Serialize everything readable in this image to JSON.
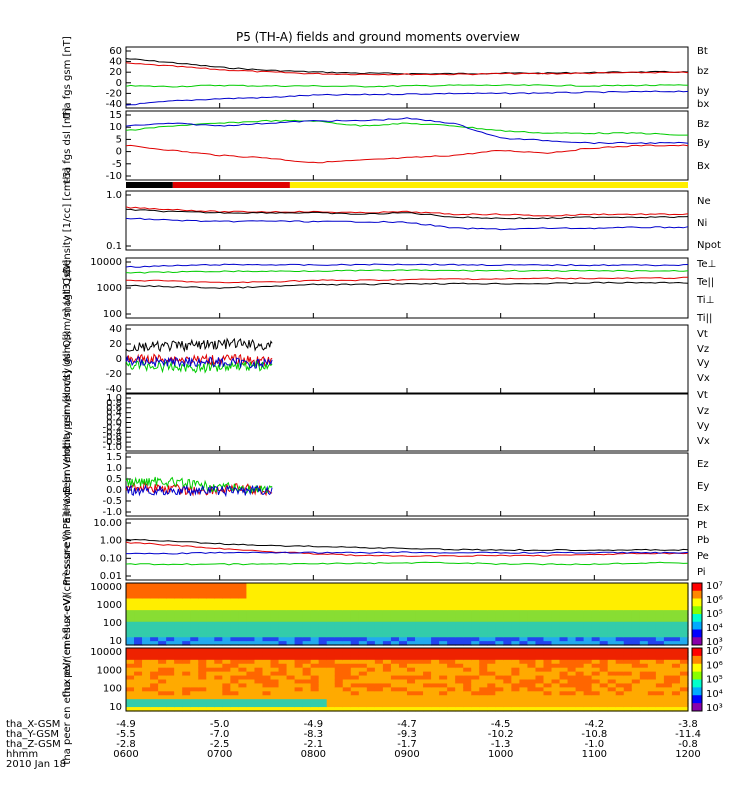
{
  "title": "P5 (TH-A) fields and ground moments overview",
  "colors": {
    "black": "#000000",
    "red": "#e00000",
    "green": "#00cc00",
    "blue": "#0000cc",
    "yellow": "#ffee00"
  },
  "time_axis": {
    "ticks": [
      "0600",
      "0700",
      "0800",
      "0900",
      "1000",
      "1100",
      "1200"
    ],
    "rows": [
      {
        "label": "tha_X-GSM",
        "values": [
          "-4.9",
          "-5.0",
          "-4.9",
          "-4.7",
          "-4.5",
          "-4.2",
          "-3.8"
        ]
      },
      {
        "label": "tha_Y-GSM",
        "values": [
          "-5.5",
          "-7.0",
          "-8.3",
          "-9.3",
          "-10.2",
          "-10.8",
          "-11.4"
        ]
      },
      {
        "label": "tha_Z-GSM",
        "values": [
          "-2.8",
          "-2.5",
          "-2.1",
          "-1.7",
          "-1.3",
          "-1.0",
          "-0.8"
        ]
      },
      {
        "label": "hhmm",
        "values": []
      },
      {
        "label": "2010 Jan 18",
        "values": []
      }
    ]
  },
  "mode_bar": {
    "segments": [
      {
        "from": "0600",
        "to": "0630",
        "color": "#000000"
      },
      {
        "from": "0630",
        "to": "0745",
        "color": "#e00000"
      },
      {
        "from": "0745",
        "to": "1200",
        "color": "#ffee00"
      }
    ]
  },
  "colorbar": {
    "labels": [
      "10⁷",
      "10⁶",
      "10⁵",
      "10⁴",
      "10³"
    ]
  },
  "chart_data": [
    {
      "type": "line",
      "ylabel": "tha fgs gsm [nT]",
      "yticks": [
        "60",
        "40",
        "20",
        "0",
        "-20",
        "-40"
      ],
      "ylim": [
        -40,
        65
      ],
      "series": [
        {
          "name": "Bt",
          "color": "black",
          "values": [
            45,
            38,
            30,
            25,
            22,
            20,
            19,
            19,
            20,
            20,
            21,
            22,
            22
          ]
        },
        {
          "name": "bz",
          "color": "red",
          "values": [
            37,
            32,
            26,
            22,
            19,
            18,
            18,
            18,
            19,
            19,
            20,
            21,
            21
          ]
        },
        {
          "name": "by",
          "color": "green",
          "values": [
            -2,
            -3,
            -1,
            -2,
            -2,
            -3,
            -2,
            -1,
            -1,
            -1,
            -2,
            -1,
            -1
          ]
        },
        {
          "name": "bx",
          "color": "blue",
          "values": [
            -35,
            -28,
            -24,
            -22,
            -18,
            -17,
            -16,
            -15,
            -15,
            -14,
            -13,
            -12,
            -11
          ]
        }
      ]
    },
    {
      "type": "line",
      "ylabel": "tha fgs dsl [nT]",
      "yticks": [
        "15",
        "10",
        "5",
        "0",
        "-5",
        "-10"
      ],
      "ylim": [
        -12,
        16
      ],
      "series": [
        {
          "name": "Bz",
          "color": "red",
          "values": [
            2,
            0,
            -2,
            -3,
            -5,
            -4,
            -3,
            -2,
            0,
            -1,
            1,
            2,
            2
          ]
        },
        {
          "name": "By",
          "color": "green",
          "values": [
            8,
            10,
            11,
            12,
            12,
            10,
            11,
            10,
            8,
            7,
            7,
            7,
            6
          ]
        },
        {
          "name": "Bx",
          "color": "blue",
          "values": [
            10,
            11,
            10,
            11,
            12,
            12,
            13,
            11,
            5,
            4,
            3,
            3,
            3
          ]
        }
      ]
    },
    {
      "type": "line",
      "ylabel": "Density [1/cc] [cm-3]",
      "yticks": [
        "1.0",
        "0.1"
      ],
      "ylim": [
        0.1,
        1.2
      ],
      "log": true,
      "series": [
        {
          "name": "Ne",
          "color": "red",
          "values": [
            0.6,
            0.55,
            0.5,
            0.5,
            0.5,
            0.48,
            0.5,
            0.45,
            0.45,
            0.42,
            0.45,
            0.45,
            0.45
          ]
        },
        {
          "name": "Ni",
          "color": "black",
          "values": [
            0.55,
            0.5,
            0.48,
            0.48,
            0.48,
            0.45,
            0.48,
            0.4,
            0.38,
            0.38,
            0.4,
            0.4,
            0.4
          ]
        },
        {
          "name": "Npot",
          "color": "blue",
          "values": [
            0.38,
            0.35,
            0.33,
            0.34,
            0.33,
            0.33,
            0.32,
            0.25,
            0.24,
            0.25,
            0.25,
            0.26,
            0.26
          ]
        }
      ]
    },
    {
      "type": "line",
      "ylabel": "magt3 [eV]",
      "yticks": [
        "10000",
        "1000",
        "100"
      ],
      "ylim": [
        100,
        10000
      ],
      "log": true,
      "series": [
        {
          "name": "Te⊥",
          "color": "red",
          "values": [
            1800,
            1700,
            1500,
            1600,
            1800,
            1800,
            1900,
            2000,
            2000,
            2100,
            2100,
            2100,
            2200
          ]
        },
        {
          "name": "Te||",
          "color": "black",
          "values": [
            1200,
            1100,
            1000,
            1100,
            1300,
            1300,
            1400,
            1400,
            1400,
            1400,
            1500,
            1500,
            1500
          ]
        },
        {
          "name": "Ti⊥",
          "color": "blue",
          "values": [
            5000,
            5500,
            6000,
            6000,
            5800,
            6000,
            6200,
            6000,
            5800,
            5800,
            5800,
            5800,
            5800
          ]
        },
        {
          "name": "Ti||",
          "color": "green",
          "values": [
            3200,
            3400,
            3600,
            3600,
            3700,
            3800,
            3900,
            3800,
            3800,
            3700,
            3700,
            3700,
            3700
          ]
        }
      ]
    },
    {
      "type": "line",
      "ylabel": "tha peir velocity gsm [km/s] (All Qs)",
      "yticks": [
        "40",
        "20",
        "0",
        "-20",
        "-40"
      ],
      "ylim": [
        -45,
        50
      ],
      "series": [
        {
          "name": "Vt",
          "color": "black",
          "values": [
            18,
            20,
            22,
            24,
            20
          ]
        },
        {
          "name": "Vz",
          "color": "red",
          "values": [
            2,
            3,
            1,
            2,
            -2
          ]
        },
        {
          "name": "Vy",
          "color": "green",
          "values": [
            -5,
            -8,
            -10,
            -6,
            -8
          ]
        },
        {
          "name": "Vx",
          "color": "blue",
          "values": [
            0,
            -2,
            -1,
            -3,
            -4
          ]
        }
      ]
    },
    {
      "type": "line",
      "ylabel": "tha peer velocity gsm [km/s] (All Qs)",
      "yticks": [
        "1.0",
        "0.8",
        "0.6",
        "0.4",
        "0.2",
        "0.0",
        "-0.2",
        "-0.4",
        "-0.6",
        "-0.8",
        "-1.0"
      ],
      "ylim": [
        -1,
        1
      ],
      "series": [
        {
          "name": "Vt",
          "color": "black",
          "values": []
        },
        {
          "name": "Vz",
          "color": "red",
          "values": []
        },
        {
          "name": "Vy",
          "color": "green",
          "values": []
        },
        {
          "name": "Vx",
          "color": "blue",
          "values": []
        }
      ]
    },
    {
      "type": "line",
      "ylabel": "E=-VxB [mV/m]",
      "yticks": [
        "1.5",
        "1.0",
        "0.5",
        "0.0",
        "-0.5",
        "-1.0"
      ],
      "ylim": [
        -1,
        1.5
      ],
      "series": [
        {
          "name": "Ez",
          "color": "red",
          "values": [
            0.2,
            0.1,
            0.0,
            0.1,
            0.0
          ]
        },
        {
          "name": "Ey",
          "color": "green",
          "values": [
            0.3,
            0.4,
            0.2,
            0.1,
            0.0
          ]
        },
        {
          "name": "Ex",
          "color": "blue",
          "values": [
            0.0,
            0.0,
            0.0,
            0.0,
            0.0
          ]
        }
      ]
    },
    {
      "type": "line",
      "ylabel": "Pressure [nPa]",
      "yticks": [
        "10.00",
        "1.00",
        "0.10",
        "0.01"
      ],
      "ylim": [
        0.01,
        10
      ],
      "log": true,
      "series": [
        {
          "name": "Pt",
          "color": "black",
          "values": [
            1.0,
            0.8,
            0.6,
            0.5,
            0.45,
            0.4,
            0.35,
            0.32,
            0.3,
            0.3,
            0.3,
            0.3,
            0.3
          ]
        },
        {
          "name": "Pb",
          "color": "red",
          "values": [
            0.7,
            0.5,
            0.35,
            0.25,
            0.2,
            0.16,
            0.15,
            0.15,
            0.16,
            0.16,
            0.18,
            0.2,
            0.2
          ]
        },
        {
          "name": "Pe",
          "color": "green",
          "values": [
            0.06,
            0.06,
            0.06,
            0.06,
            0.065,
            0.065,
            0.07,
            0.07,
            0.06,
            0.06,
            0.06,
            0.07,
            0.07
          ]
        },
        {
          "name": "Pi",
          "color": "blue",
          "values": [
            0.2,
            0.2,
            0.22,
            0.22,
            0.22,
            0.22,
            0.23,
            0.22,
            0.22,
            0.22,
            0.22,
            0.22,
            0.22
          ]
        }
      ]
    },
    {
      "type": "heatmap",
      "ylabel": "tha peir en eflux eV/(cm²-s-sr-eV)",
      "yticks": [
        "10000",
        "1000",
        "100",
        "10"
      ],
      "ylim": [
        10,
        20000
      ],
      "log": true
    },
    {
      "type": "heatmap",
      "ylabel": "tha peer en eflux eV/(cm²-s-sr-eV)",
      "yticks": [
        "10000",
        "1000",
        "100",
        "10"
      ],
      "ylim": [
        5,
        20000
      ],
      "log": true
    }
  ]
}
